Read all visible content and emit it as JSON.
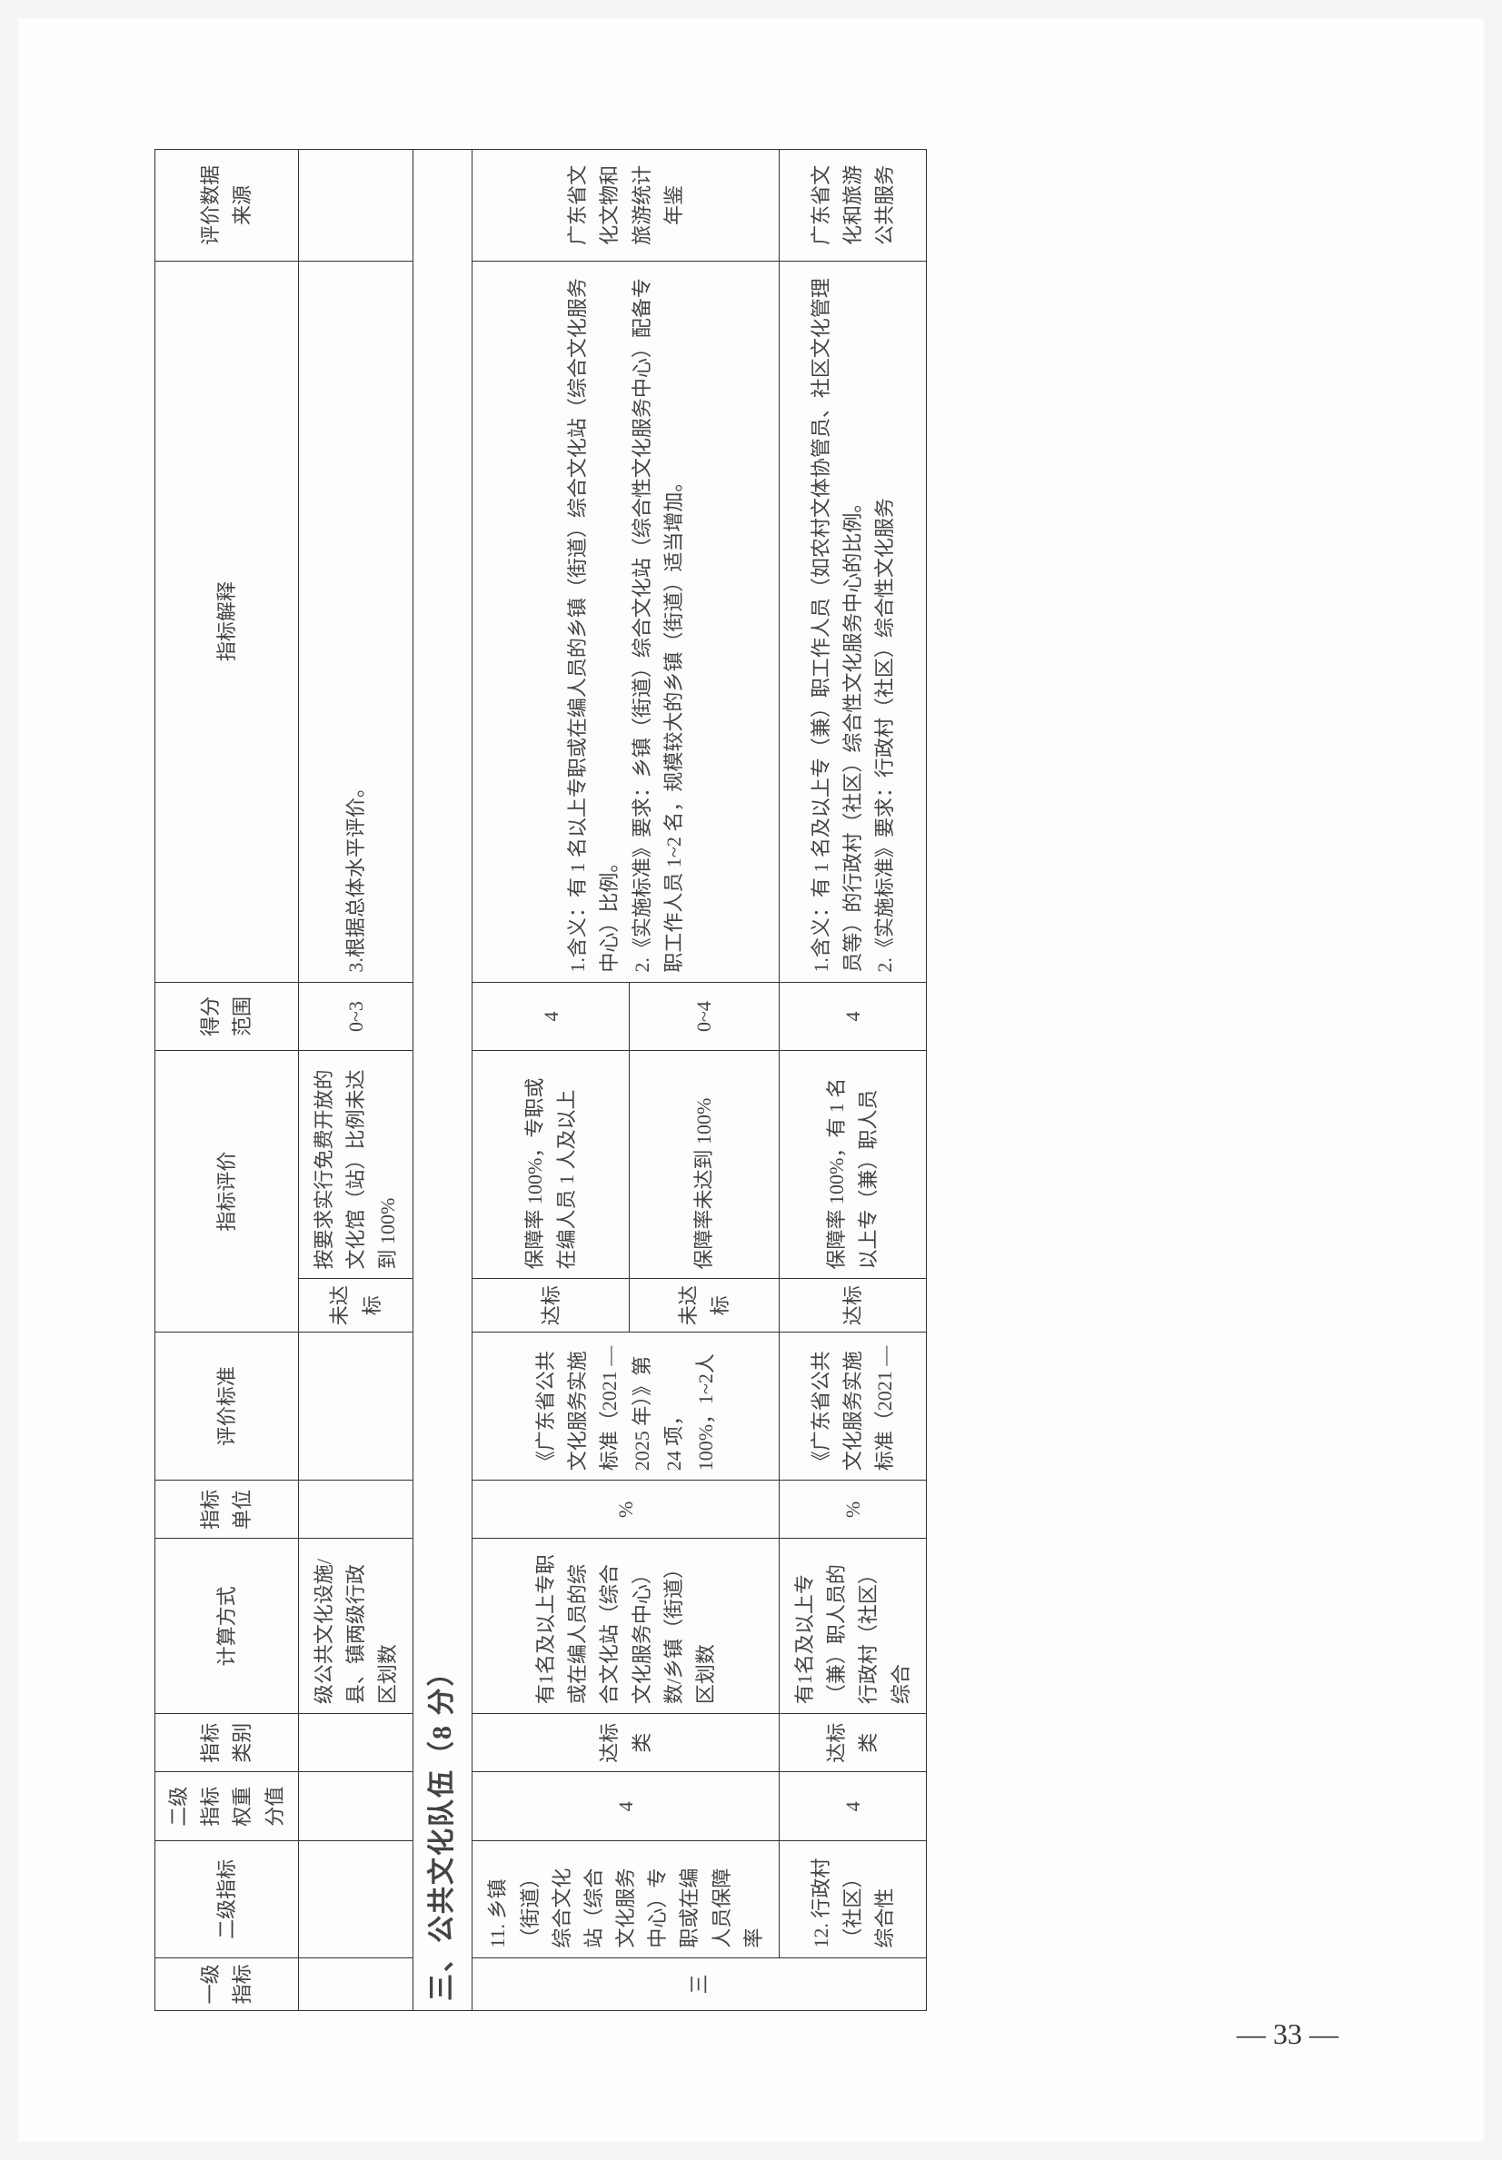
{
  "page_number": "— 33 —",
  "headers": {
    "col1": "一级指标",
    "col2": "二级指标",
    "col3": "二级指标权重分值",
    "col4": "指标类别",
    "col5": "计算方式",
    "col6": "指标单位",
    "col7": "评价标准",
    "col8_blank": "",
    "col9": "指标评价",
    "col10": "得分范围",
    "col11": "指标解释",
    "col12": "评价数据来源"
  },
  "row_cont": {
    "calc": "级公共文化设施/县、镇两级行政区划数",
    "status": "未达标",
    "eval": "按要求实行免费开放的文化馆（站）比例未达到 100%",
    "score": "0~3",
    "interp": "3.根据总体水平评价。"
  },
  "section_title": "三、公共文化队伍（8 分）",
  "row11": {
    "lvl1": "三",
    "lvl2": "11. 乡镇（街道）综合文化站（综合文化服务中心）专职或在编人员保障率",
    "weight": "4",
    "category": "达标类",
    "calc": "有1名及以上专职或在编人员的综合文化站（综合文化服务中心）数/乡镇（街道）区划数",
    "unit": "%",
    "standard": "《广东省公共文化服务实施标准（2021 — 2025 年）》第 24 项，100%，1~2人",
    "status_a": "达标",
    "eval_a": "保障率 100%，专职或在编人员 1 人及以上",
    "score_a": "4",
    "status_b": "未达标",
    "eval_b": "保障率未达到 100%",
    "score_b": "0~4",
    "interp": "1.含义：有 1 名以上专职或在编人员的乡镇（街道）综合文化站（综合文化服务中心）比例。\n2.《实施标准》要求：乡镇（街道）综合文化站（综合性文化服务中心）配备专职工作人员 1~2 名，规模较大的乡镇（街道）适当增加。",
    "source": "广东省文化文物和旅游统计年鉴"
  },
  "row12": {
    "lvl2": "12. 行政村（社区）综合性",
    "weight": "4",
    "category": "达标类",
    "calc": "有1名及以上专（兼）职人员的行政村（社区）综合",
    "unit": "%",
    "standard": "《广东省公共文化服务实施标准（2021 —",
    "status_a": "达标",
    "eval_a": "保障率 100%，有 1 名以上专（兼）职人员",
    "score_a": "4",
    "interp": "1.含义：有 1 名及以上专（兼）职工作人员（如农村文体协管员、社区文化管理员等）的行政村（社区）综合性文化服务中心的比例。\n2.《实施标准》要求：行政村（社区）综合性文化服务",
    "source": "广东省文化和旅游公共服务"
  }
}
